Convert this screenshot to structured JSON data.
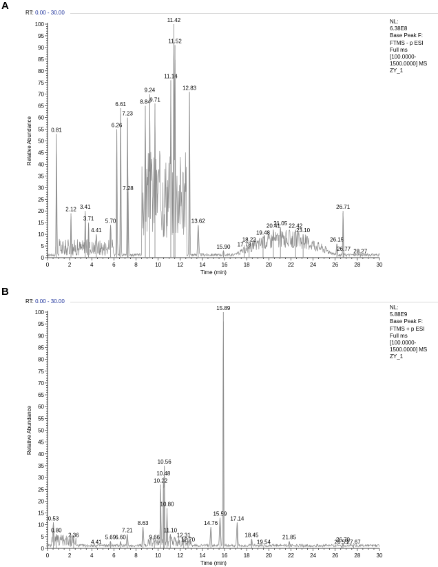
{
  "panels": [
    {
      "letter": "A",
      "rt_label": "RT:",
      "rt_range": "0.00 - 30.00",
      "info": [
        "NL:",
        "6.38E8",
        "Base Peak F:",
        "FTMS - p ESI",
        "Full ms",
        "[100.0000-",
        "1500.0000]  MS",
        "ZY_1"
      ]
    },
    {
      "letter": "B",
      "rt_label": "RT:",
      "rt_range": "0.00 - 30.00",
      "info": [
        "NL:",
        "5.88E9",
        "Base Peak F:",
        "FTMS + p ESI",
        "Full ms",
        "[100.0000-",
        "1500.0000]  MS",
        "ZY_1"
      ]
    }
  ],
  "chart_data": [
    {
      "type": "line",
      "xlabel": "Time (min)",
      "ylabel": "Relative Abundance",
      "xlim": [
        0,
        30
      ],
      "ylim": [
        0,
        100
      ],
      "xticks": [
        0,
        2,
        4,
        6,
        8,
        10,
        12,
        14,
        16,
        18,
        20,
        22,
        24,
        26,
        28,
        30
      ],
      "yticks": [
        0,
        5,
        10,
        15,
        20,
        25,
        30,
        35,
        40,
        45,
        50,
        55,
        60,
        65,
        70,
        75,
        80,
        85,
        90,
        95,
        100
      ],
      "line_color": "#8c8c8c",
      "peaks": [
        {
          "x": 0.81,
          "y": 53,
          "label": "0.81"
        },
        {
          "x": 2.12,
          "y": 19,
          "label": "2.12"
        },
        {
          "x": 3.41,
          "y": 20,
          "label": "3.41"
        },
        {
          "x": 3.71,
          "y": 15,
          "label": "3.71"
        },
        {
          "x": 4.41,
          "y": 10,
          "label": "4.41"
        },
        {
          "x": 5.7,
          "y": 14,
          "label": "5.70"
        },
        {
          "x": 6.26,
          "y": 55,
          "label": "6.26"
        },
        {
          "x": 6.61,
          "y": 64,
          "label": "6.61"
        },
        {
          "x": 7.23,
          "y": 60,
          "label": "7.23"
        },
        {
          "x": 7.28,
          "y": 28,
          "label": "7.28"
        },
        {
          "x": 8.84,
          "y": 65,
          "label": "8.84"
        },
        {
          "x": 9.24,
          "y": 70,
          "label": "9.24"
        },
        {
          "x": 9.71,
          "y": 66,
          "label": "9.71"
        },
        {
          "x": 11.14,
          "y": 76,
          "label": "11.14"
        },
        {
          "x": 11.42,
          "y": 100,
          "label": "11.42"
        },
        {
          "x": 11.52,
          "y": 91,
          "label": "11.52"
        },
        {
          "x": 12.83,
          "y": 71,
          "label": "12.83"
        },
        {
          "x": 13.62,
          "y": 14,
          "label": "13.62"
        },
        {
          "x": 15.9,
          "y": 3,
          "label": "15.90"
        },
        {
          "x": 17.78,
          "y": 4,
          "label": "17.78"
        },
        {
          "x": 18.22,
          "y": 6,
          "label": "18.22"
        },
        {
          "x": 19.48,
          "y": 9,
          "label": "19.48"
        },
        {
          "x": 20.41,
          "y": 12,
          "label": "20.41"
        },
        {
          "x": 21.05,
          "y": 13,
          "label": "21.05"
        },
        {
          "x": 22.42,
          "y": 12,
          "label": "22.42"
        },
        {
          "x": 23.1,
          "y": 10,
          "label": "23.10"
        },
        {
          "x": 26.15,
          "y": 6,
          "label": "26.15"
        },
        {
          "x": 26.71,
          "y": 20,
          "label": "26.71"
        },
        {
          "x": 26.77,
          "y": 2,
          "label": "26.77"
        },
        {
          "x": 28.27,
          "y": 1,
          "label": "28.27"
        }
      ]
    },
    {
      "type": "line",
      "xlabel": "Time (min)",
      "ylabel": "Relative Abundance",
      "xlim": [
        0,
        30
      ],
      "ylim": [
        0,
        100
      ],
      "xticks": [
        0,
        2,
        4,
        6,
        8,
        10,
        12,
        14,
        16,
        18,
        20,
        22,
        24,
        26,
        28,
        30
      ],
      "yticks": [
        0,
        5,
        10,
        15,
        20,
        25,
        30,
        35,
        40,
        45,
        50,
        55,
        60,
        65,
        70,
        75,
        80,
        85,
        90,
        95,
        100
      ],
      "line_color": "#8c8c8c",
      "peaks": [
        {
          "x": 0.53,
          "y": 11,
          "label": "0.53"
        },
        {
          "x": 0.8,
          "y": 6,
          "label": "0.80"
        },
        {
          "x": 2.36,
          "y": 4,
          "label": "2.36"
        },
        {
          "x": 4.41,
          "y": 1,
          "label": "4.41"
        },
        {
          "x": 5.69,
          "y": 3,
          "label": "5.69"
        },
        {
          "x": 6.6,
          "y": 3,
          "label": "6.60"
        },
        {
          "x": 7.21,
          "y": 6,
          "label": "7.21"
        },
        {
          "x": 8.63,
          "y": 9,
          "label": "8.63"
        },
        {
          "x": 9.66,
          "y": 3,
          "label": "9.66"
        },
        {
          "x": 10.22,
          "y": 27,
          "label": "10.22"
        },
        {
          "x": 10.48,
          "y": 30,
          "label": "10.48"
        },
        {
          "x": 10.56,
          "y": 35,
          "label": "10.56"
        },
        {
          "x": 10.8,
          "y": 17,
          "label": "10.80"
        },
        {
          "x": 11.1,
          "y": 6,
          "label": "11.10"
        },
        {
          "x": 12.31,
          "y": 4,
          "label": "12.31"
        },
        {
          "x": 12.7,
          "y": 2,
          "label": "12.70"
        },
        {
          "x": 14.76,
          "y": 9,
          "label": "14.76"
        },
        {
          "x": 15.59,
          "y": 13,
          "label": "15.59"
        },
        {
          "x": 15.89,
          "y": 100,
          "label": "15.89"
        },
        {
          "x": 17.14,
          "y": 11,
          "label": "17.14"
        },
        {
          "x": 18.45,
          "y": 4,
          "label": "18.45"
        },
        {
          "x": 19.54,
          "y": 1,
          "label": "19.54"
        },
        {
          "x": 21.85,
          "y": 3,
          "label": "21.85"
        },
        {
          "x": 26.55,
          "y": 1,
          "label": "26.55"
        },
        {
          "x": 26.7,
          "y": 2,
          "label": "26.70"
        },
        {
          "x": 27.67,
          "y": 1,
          "label": "27.67"
        }
      ]
    }
  ]
}
